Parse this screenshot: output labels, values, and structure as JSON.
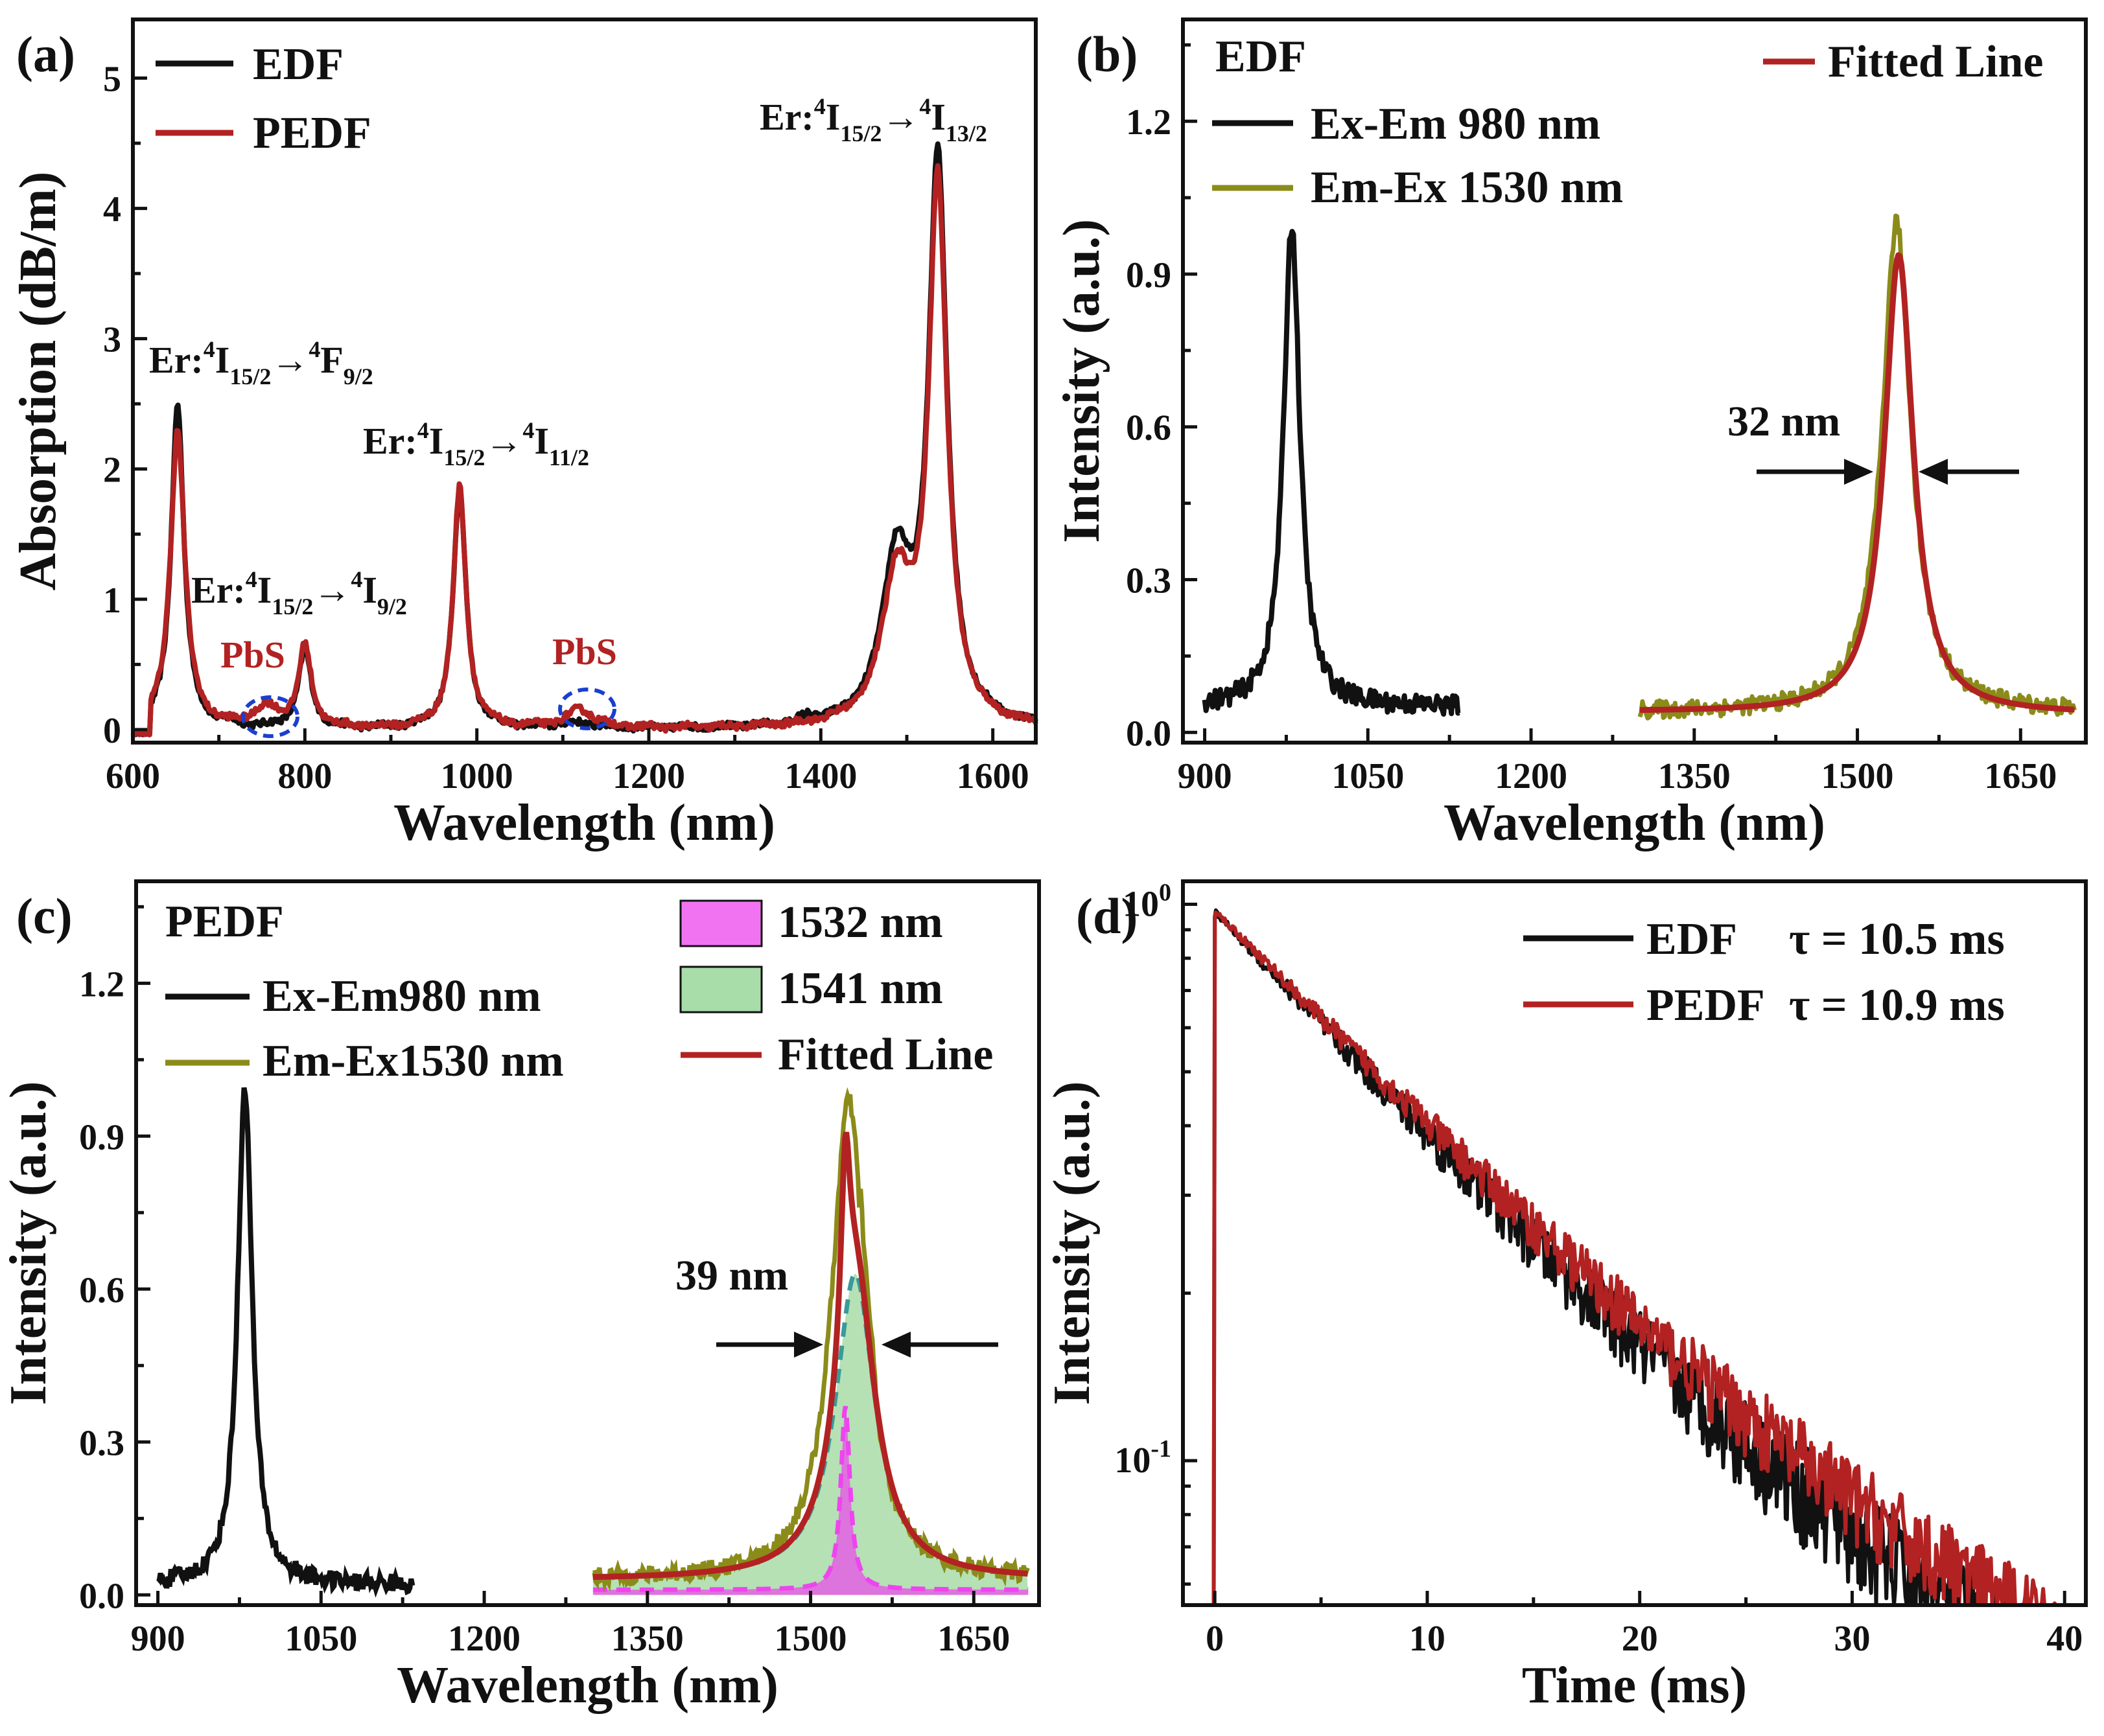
{
  "panels": {
    "a": {
      "label": "(a)",
      "legend": [
        "EDF",
        "PEDF"
      ],
      "annotations": {
        "er_f92": {
          "prefix": "Er:",
          "sup1": "4",
          "lower": "I",
          "sub1": "15/2",
          "arrow": "→",
          "sup2": "4",
          "upper": "F",
          "sub2": "9/2"
        },
        "er_i92": {
          "prefix": "Er:",
          "sup1": "4",
          "lower": "I",
          "sub1": "15/2",
          "arrow": "→",
          "sup2": "4",
          "upper": "I",
          "sub2": "9/2"
        },
        "er_i112": {
          "prefix": "Er:",
          "sup1": "4",
          "lower": "I",
          "sub1": "15/2",
          "arrow": "→",
          "sup2": "4",
          "upper": "I",
          "sub2": "11/2"
        },
        "er_i132": {
          "prefix": "Er:",
          "sup1": "4",
          "lower": "I",
          "sub1": "15/2",
          "arrow": "→",
          "sup2": "4",
          "upper": "I",
          "sub2": "13/2"
        },
        "pbs1": "PbS",
        "pbs2": "PbS"
      }
    },
    "b": {
      "label": "(b)",
      "sample": "EDF",
      "legend": [
        "Ex-Em 980 nm",
        "Em-Ex 1530 nm",
        "Fitted Line"
      ],
      "fwhm": "32 nm"
    },
    "c": {
      "label": "(c)",
      "sample": "PEDF",
      "legend": [
        "Ex-Em980 nm",
        "Em-Ex1530 nm",
        "1532 nm",
        "1541 nm",
        "Fitted Line"
      ],
      "fwhm": "39 nm"
    },
    "d": {
      "label": "(d)",
      "legend": [
        {
          "name": "EDF",
          "tau": "τ = 10.5 ms"
        },
        {
          "name": "PEDF",
          "tau": "τ = 10.9 ms"
        }
      ],
      "ytick_base": "10"
    }
  },
  "colors": {
    "black": "#111111",
    "red": "#b22222",
    "olive": "#8b8b1a",
    "magenta": "#ee44ee",
    "green_fill": "#a8dca8",
    "teal": "#3a9a9a",
    "blue_ellipse": "#1a3fd0"
  },
  "chart_data": [
    {
      "id": "a",
      "type": "line",
      "xlabel": "Wavelength (nm)",
      "ylabel": "Absorption (dB/m)",
      "xlim": [
        600,
        1650
      ],
      "ylim": [
        -0.1,
        5.45
      ],
      "xticks": [
        600,
        800,
        1000,
        1200,
        1400,
        1600
      ],
      "yticks": [
        0,
        1,
        2,
        3,
        4,
        5
      ],
      "series": [
        {
          "name": "EDF",
          "peaks": [
            [
              652,
              2.5,
              9
            ],
            [
              712,
              0.02,
              12
            ],
            [
              800,
              0.6,
              9
            ],
            [
              980,
              1.84,
              9
            ],
            [
              1115,
              0.04,
              25
            ],
            [
              1385,
              0.05,
              10
            ],
            [
              1488,
              1.25,
              20
            ],
            [
              1536,
              4.3,
              13
            ]
          ],
          "baseline": 0.0
        },
        {
          "name": "PEDF",
          "peaks": [
            [
              652,
              2.3,
              10
            ],
            [
              755,
              0.15,
              18
            ],
            [
              800,
              0.62,
              9
            ],
            [
              980,
              1.85,
              9
            ],
            [
              1120,
              0.14,
              20
            ],
            [
              1488,
              1.1,
              20
            ],
            [
              1536,
              4.15,
              13
            ]
          ],
          "baseline": 0.0
        }
      ]
    },
    {
      "id": "b",
      "type": "line",
      "xlabel": "Wavelength (nm)",
      "ylabel": "Intensity (a.u.)",
      "xlim": [
        880,
        1710
      ],
      "ylim": [
        -0.02,
        1.4
      ],
      "xticks": [
        900,
        1050,
        1200,
        1350,
        1500,
        1650
      ],
      "yticks": [
        0.0,
        0.3,
        0.6,
        0.9,
        1.2
      ],
      "series": [
        {
          "name": "Ex-Em 980 nm",
          "x_range": [
            900,
            1135
          ],
          "peak_center": 980,
          "peak_height": 1.0,
          "peak_width": 9,
          "baseline": 0.05
        },
        {
          "name": "Em-Ex 1530 nm",
          "x_range": [
            1300,
            1700
          ],
          "peak_center": 1536,
          "peak_height": 1.0,
          "peak_width": 16,
          "baseline": 0.04
        },
        {
          "name": "Fitted Line",
          "x_range": [
            1300,
            1700
          ],
          "peak_center": 1538,
          "peak_height": 0.94,
          "peak_width": 16,
          "baseline": 0.04
        }
      ]
    },
    {
      "id": "c",
      "type": "line",
      "xlabel": "Wavelength (nm)",
      "ylabel": "Intensity (a.u.)",
      "xlim": [
        880,
        1710
      ],
      "ylim": [
        -0.02,
        1.4
      ],
      "xticks": [
        900,
        1050,
        1200,
        1350,
        1500,
        1650
      ],
      "yticks": [
        0.0,
        0.3,
        0.6,
        0.9,
        1.2
      ],
      "series": [
        {
          "name": "Ex-Em980 nm",
          "x_range": [
            900,
            1135
          ],
          "peak_center": 980,
          "peak_height": 1.0,
          "peak_width": 8,
          "baseline": 0.02
        },
        {
          "name": "Em-Ex1530 nm",
          "x_range": [
            1300,
            1700
          ],
          "peak_center": 1535,
          "peak_height": 0.97,
          "peak_width": 19,
          "baseline": 0.03
        },
        {
          "name": "1532 nm",
          "x_range": [
            1300,
            1700
          ],
          "peak_center": 1532,
          "peak_height": 0.36,
          "peak_width": 5,
          "baseline": 0.01
        },
        {
          "name": "1541 nm",
          "x_range": [
            1300,
            1700
          ],
          "peak_center": 1541,
          "peak_height": 0.6,
          "peak_width": 22,
          "baseline": 0.03
        },
        {
          "name": "Fitted Line",
          "x_range": [
            1300,
            1700
          ],
          "peak_center": 1535,
          "peak_height": 0.98,
          "peak_width": 19,
          "baseline": 0.02
        }
      ]
    },
    {
      "id": "d",
      "type": "line",
      "scale_y": "log",
      "xlabel": "Time (ms)",
      "ylabel": "Intensity (a.u.)",
      "xlim": [
        -1.5,
        41
      ],
      "ylim": [
        0.055,
        1.1
      ],
      "xticks": [
        0,
        10,
        20,
        30,
        40
      ],
      "yticks": [
        0.1,
        1
      ],
      "series": [
        {
          "name": "EDF",
          "tau_ms": 10.5,
          "x_range": [
            0,
            40
          ],
          "start": 0.95,
          "offset": 0.02,
          "noise": 0.22
        },
        {
          "name": "PEDF",
          "tau_ms": 10.9,
          "x_range": [
            0,
            40
          ],
          "start": 0.95,
          "offset": 0.025,
          "noise": 0.18
        }
      ]
    }
  ]
}
